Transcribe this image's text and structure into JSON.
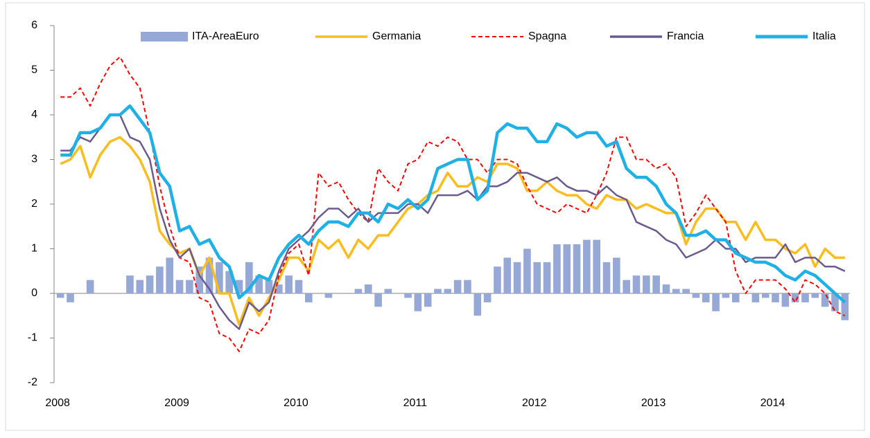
{
  "chart_data": {
    "type": "combo",
    "categories": [
      "2008",
      null,
      null,
      null,
      null,
      null,
      null,
      null,
      null,
      null,
      null,
      null,
      "2009",
      null,
      null,
      null,
      null,
      null,
      null,
      null,
      null,
      null,
      null,
      null,
      "2010",
      null,
      null,
      null,
      null,
      null,
      null,
      null,
      null,
      null,
      null,
      null,
      "2011",
      null,
      null,
      null,
      null,
      null,
      null,
      null,
      null,
      null,
      null,
      null,
      "2012",
      null,
      null,
      null,
      null,
      null,
      null,
      null,
      null,
      null,
      null,
      null,
      "2013",
      null,
      null,
      null,
      null,
      null,
      null,
      null,
      null,
      null,
      null,
      null,
      "2014",
      null,
      null,
      null,
      null,
      null,
      null,
      null
    ],
    "series": [
      {
        "name": "ITA-AreaEuro",
        "type": "bar",
        "color": "#95a8d6",
        "values": [
          -0.1,
          -0.2,
          0,
          0.3,
          0,
          0,
          0,
          0.4,
          0.3,
          0.4,
          0.6,
          0.8,
          0.3,
          0.3,
          0.6,
          0.8,
          0.7,
          0.5,
          0.3,
          0.7,
          0.4,
          0.3,
          0.2,
          0.4,
          0.3,
          -0.2,
          0,
          -0.1,
          0,
          0,
          0.1,
          0.2,
          -0.3,
          0.1,
          0,
          -0.1,
          -0.4,
          -0.3,
          0.1,
          0.1,
          0.3,
          0.3,
          -0.5,
          -0.2,
          0.6,
          0.8,
          0.7,
          1.0,
          0.7,
          0.7,
          1.1,
          1.1,
          1.1,
          1.2,
          1.2,
          0.7,
          0.8,
          0.3,
          0.4,
          0.4,
          0.4,
          0.2,
          0.1,
          0.1,
          -0.1,
          -0.2,
          -0.4,
          -0.1,
          -0.2,
          0,
          -0.2,
          -0.1,
          -0.2,
          -0.3,
          -0.2,
          -0.2,
          -0.1,
          -0.3,
          -0.4,
          -0.6
        ]
      },
      {
        "name": "Germania",
        "type": "line",
        "color": "#fbbc1e",
        "values": [
          2.9,
          3.0,
          3.3,
          2.6,
          3.1,
          3.4,
          3.5,
          3.3,
          3.0,
          2.5,
          1.4,
          1.1,
          0.9,
          1.0,
          0.4,
          0.8,
          0.0,
          0.0,
          -0.7,
          -0.1,
          -0.5,
          -0.1,
          0.3,
          0.8,
          0.8,
          0.5,
          1.2,
          1.0,
          1.2,
          0.8,
          1.2,
          1.0,
          1.3,
          1.3,
          1.6,
          1.9,
          2.0,
          2.2,
          2.3,
          2.7,
          2.4,
          2.4,
          2.6,
          2.5,
          2.9,
          2.9,
          2.8,
          2.3,
          2.3,
          2.5,
          2.3,
          2.2,
          2.2,
          2.0,
          1.9,
          2.2,
          2.1,
          2.1,
          1.9,
          2.0,
          1.9,
          1.8,
          1.8,
          1.1,
          1.6,
          1.9,
          1.9,
          1.6,
          1.6,
          1.2,
          1.6,
          1.2,
          1.2,
          1.0,
          0.9,
          1.1,
          0.6,
          1.0,
          0.8,
          0.8
        ]
      },
      {
        "name": "Spagna",
        "type": "line",
        "dashed": true,
        "color": "#ff0000",
        "values": [
          4.4,
          4.4,
          4.6,
          4.2,
          4.7,
          5.1,
          5.3,
          4.9,
          4.6,
          3.6,
          2.4,
          1.5,
          0.8,
          0.7,
          -0.1,
          -0.2,
          -0.9,
          -1.0,
          -1.3,
          -0.8,
          -0.9,
          -0.6,
          0.4,
          0.9,
          1.1,
          0.4,
          2.7,
          2.4,
          2.5,
          2.1,
          1.8,
          1.6,
          2.8,
          2.5,
          2.3,
          2.9,
          3.0,
          3.4,
          3.3,
          3.5,
          3.4,
          3.0,
          3.0,
          2.7,
          3.0,
          3.0,
          2.9,
          2.4,
          2.0,
          1.9,
          1.8,
          2.0,
          1.9,
          1.8,
          2.2,
          2.7,
          3.5,
          3.5,
          3.0,
          3.0,
          2.8,
          2.9,
          2.6,
          1.5,
          1.8,
          2.2,
          1.9,
          1.6,
          0.5,
          0.0,
          0.3,
          0.3,
          0.3,
          0.1,
          -0.2,
          0.3,
          0.2,
          0.0,
          -0.4,
          -0.5
        ]
      },
      {
        "name": "Francia",
        "type": "line",
        "color": "#6a5a8e",
        "values": [
          3.2,
          3.2,
          3.5,
          3.4,
          3.7,
          4.0,
          4.0,
          3.5,
          3.4,
          3.0,
          1.9,
          1.2,
          0.8,
          1.0,
          0.4,
          0.1,
          -0.3,
          -0.6,
          -0.8,
          -0.2,
          -0.4,
          -0.2,
          0.5,
          1.0,
          1.2,
          1.4,
          1.7,
          1.9,
          1.9,
          1.7,
          1.9,
          1.6,
          1.8,
          1.8,
          1.8,
          2.0,
          2.0,
          1.8,
          2.2,
          2.2,
          2.2,
          2.3,
          2.1,
          2.4,
          2.4,
          2.5,
          2.7,
          2.7,
          2.6,
          2.5,
          2.6,
          2.4,
          2.3,
          2.3,
          2.2,
          2.4,
          2.2,
          2.1,
          1.6,
          1.5,
          1.4,
          1.2,
          1.1,
          0.8,
          0.9,
          1.0,
          1.2,
          1.0,
          1.0,
          0.7,
          0.8,
          0.8,
          0.8,
          1.1,
          0.7,
          0.8,
          0.8,
          0.6,
          0.6,
          0.5
        ]
      },
      {
        "name": "Italia",
        "type": "line",
        "color": "#1fb0e6",
        "values": [
          3.1,
          3.1,
          3.6,
          3.6,
          3.7,
          4.0,
          4.0,
          4.2,
          3.9,
          3.6,
          2.7,
          2.4,
          1.4,
          1.5,
          1.1,
          1.2,
          0.8,
          0.6,
          -0.1,
          0.1,
          0.4,
          0.3,
          0.8,
          1.1,
          1.3,
          1.1,
          1.4,
          1.6,
          1.6,
          1.5,
          1.8,
          1.8,
          1.6,
          2.0,
          1.9,
          2.1,
          1.9,
          2.1,
          2.8,
          2.9,
          3.0,
          3.0,
          2.1,
          2.3,
          3.6,
          3.8,
          3.7,
          3.7,
          3.4,
          3.4,
          3.8,
          3.7,
          3.5,
          3.6,
          3.6,
          3.3,
          3.4,
          2.8,
          2.6,
          2.6,
          2.4,
          2.0,
          1.8,
          1.3,
          1.3,
          1.4,
          1.2,
          1.2,
          0.9,
          0.8,
          0.7,
          0.7,
          0.6,
          0.4,
          0.3,
          0.5,
          0.4,
          0.2,
          0.0,
          -0.2
        ]
      }
    ],
    "ylim": [
      -2,
      6
    ],
    "yticks": [
      -2,
      -1,
      0,
      1,
      2,
      3,
      4,
      5,
      6
    ],
    "legend": "top"
  }
}
